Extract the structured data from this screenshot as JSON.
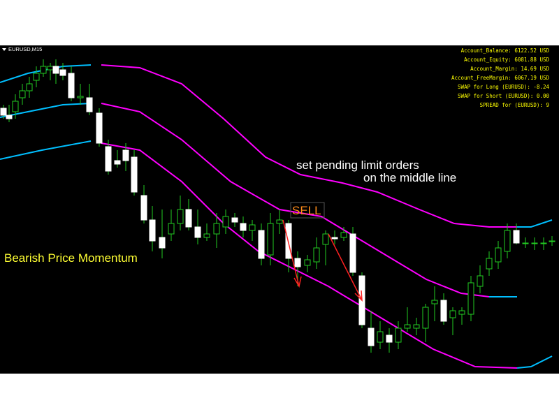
{
  "header": {
    "symbol": "EURUSD,M15"
  },
  "account": [
    "Account_Balance: 6122.52 USD",
    "Account_Equity: 6081.88 USD",
    "Account_Margin: 14.69 USD",
    "Account_FreeMargin: 6067.19 USD",
    "SWAP for Long (EURUSD): -8.24",
    "SWAP for Short (EURUSD): 0.00",
    "SPREAD for (EURUSD): 9"
  ],
  "annotations": {
    "instruction_line1": "set pending limit orders",
    "instruction_line2": "on the middle line",
    "signal": "SELL",
    "momentum": "Bearish Price Momentum"
  }
}
